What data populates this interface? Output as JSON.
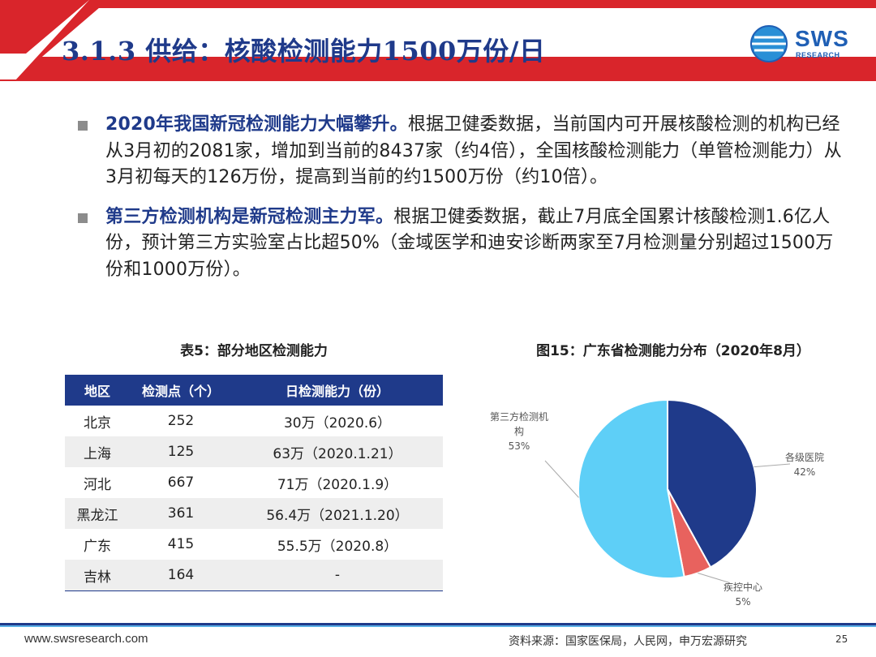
{
  "header": {
    "title": "3.1.3 供给：核酸检测能力1500万份/日",
    "logo_text": "SWS",
    "logo_sub": "RESEARCH"
  },
  "bullets": [
    {
      "lead": "2020年我国新冠检测能力大幅攀升。",
      "body": "根据卫健委数据，当前国内可开展核酸检测的机构已经从3月初的2081家，增加到当前的8437家（约4倍），全国核酸检测能力（单管检测能力）从3月初每天的126万份，提高到当前的约1500万份（约10倍）。"
    },
    {
      "lead": "第三方检测机构是新冠检测主力军。",
      "body": "根据卫健委数据，截止7月底全国累计核酸检测1.6亿人份，预计第三方实验室占比超50%（金域医学和迪安诊断两家至7月检测量分别超过1500万份和1000万份）。"
    }
  ],
  "table": {
    "caption": "表5：部分地区检测能力",
    "headers": [
      "地区",
      "检测点（个）",
      "日检测能力（份）"
    ],
    "rows": [
      [
        "北京",
        "252",
        "30万（2020.6）"
      ],
      [
        "上海",
        "125",
        "63万（2020.1.21）"
      ],
      [
        "河北",
        "667",
        "71万（2020.1.9）"
      ],
      [
        "黑龙江",
        "361",
        "56.4万（2021.1.20）"
      ],
      [
        "广东",
        "415",
        "55.5万（2020.8）"
      ],
      [
        "吉林",
        "164",
        "-"
      ]
    ]
  },
  "chart_data": {
    "type": "pie",
    "title": "图15：广东省检测能力分布（2020年8月）",
    "slices": [
      {
        "label": "各级医院",
        "value": 42,
        "pct": "42%",
        "color": "#1f3a8a"
      },
      {
        "label": "疾控中心",
        "value": 5,
        "pct": "5%",
        "color": "#e8625e"
      },
      {
        "label": "第三方检测机构",
        "value": 53,
        "pct": "53%",
        "color": "#5ecff7"
      }
    ]
  },
  "footer": {
    "url": "www.swsresearch.com",
    "source": "资料来源：国家医保局，人民网，申万宏源研究",
    "page": "25"
  },
  "colors": {
    "brand": "#1f3a8a",
    "accent_red": "#d9252b",
    "accent_light": "#5ab0e6"
  }
}
